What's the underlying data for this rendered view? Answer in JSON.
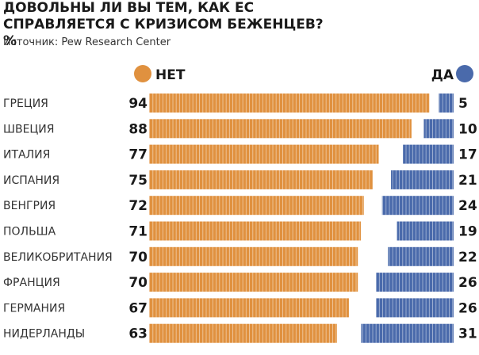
{
  "chart_data": {
    "type": "bar",
    "orientation": "diverging-horizontal",
    "title": "ДОВОЛЬНЫ ЛИ ВЫ ТЕМ, КАК ЕС СПРАВЛЯЕТСЯ С КРИЗИСОМ БЕЖЕНЦЕВ? %",
    "subtitle": "Источник: Pew Research Center",
    "categories": [
      "ГРЕЦИЯ",
      "ШВЕЦИЯ",
      "ИТАЛИЯ",
      "ИСПАНИЯ",
      "ВЕНГРИЯ",
      "ПОЛЬША",
      "ВЕЛИКОБРИТАНИЯ",
      "ФРАНЦИЯ",
      "ГЕРМАНИЯ",
      "НИДЕРЛАНДЫ"
    ],
    "series": [
      {
        "name": "НЕТ",
        "color": "#e0913f",
        "values": [
          94,
          88,
          77,
          75,
          72,
          71,
          70,
          70,
          67,
          63
        ]
      },
      {
        "name": "ДА",
        "color": "#4a6aab",
        "values": [
          5,
          10,
          17,
          21,
          24,
          19,
          22,
          26,
          26,
          31
        ]
      }
    ],
    "legend": [
      "НЕТ",
      "ДА"
    ],
    "xlim": [
      0,
      100
    ]
  }
}
